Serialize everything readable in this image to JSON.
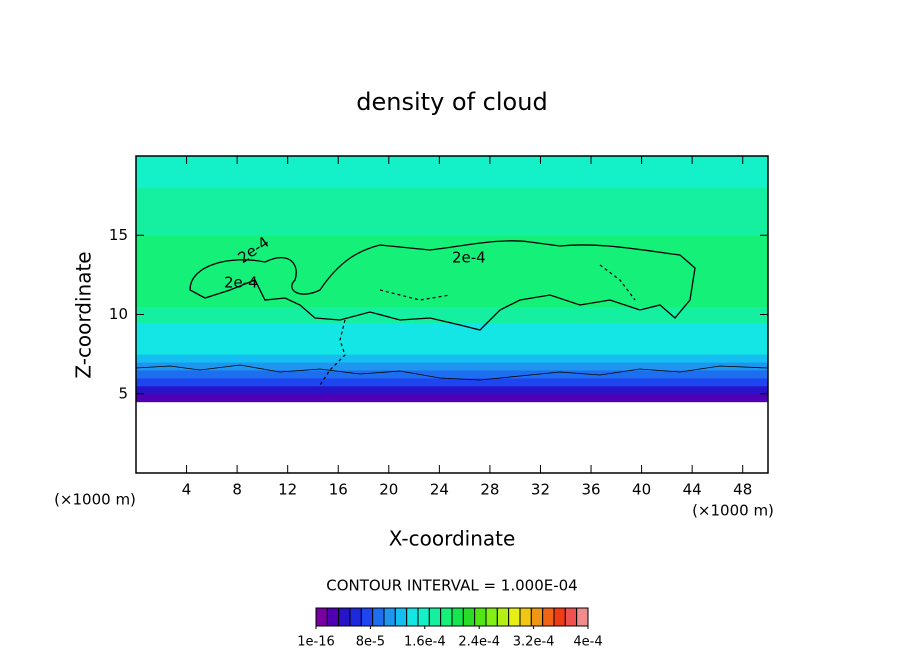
{
  "chart_data": {
    "type": "contour",
    "title": "density of cloud",
    "x_label": "X-coordinate",
    "y_label": "Z-coordinate",
    "x_unit": "(×1000 m)",
    "x_unit_right": "(×1000 m)",
    "contour_interval": "CONTOUR INTERVAL = 1.000E-04",
    "contour_labels": [
      "2e-4",
      "2e-4",
      "2e-4"
    ],
    "xlim": [
      0,
      50
    ],
    "xticks": [
      4,
      8,
      12,
      16,
      20,
      24,
      28,
      32,
      36,
      40,
      44,
      48
    ],
    "ylim": [
      0,
      20
    ],
    "yticks": [
      5,
      10,
      15
    ],
    "field": {
      "z_edges": [
        4.5,
        5,
        5.5,
        6,
        6.5,
        7,
        7.5,
        8.5,
        9.5,
        10.5,
        11.5,
        13,
        14,
        15,
        16,
        17,
        18,
        20
      ],
      "values": [
        2e-05,
        4e-05,
        7e-05,
        9e-05,
        0.00011,
        0.00012,
        0.000135,
        0.00015,
        0.00017,
        0.00019,
        0.0002,
        0.00019,
        0.000185,
        0.000175,
        0.000172,
        0.00017,
        0.00016
      ]
    },
    "clim": [
      1e-16,
      0.0004
    ],
    "colors": [
      "#7800a0",
      "#5000b4",
      "#2814c8",
      "#1e28dc",
      "#1e46f0",
      "#1e6ef0",
      "#1e96f0",
      "#14bef0",
      "#14e6e6",
      "#14f0c8",
      "#14f0a0",
      "#14f078",
      "#14e650",
      "#28dc28",
      "#50e614",
      "#82f014",
      "#b4f014",
      "#e6f014",
      "#f0c814",
      "#f09614",
      "#f06414",
      "#f03c14",
      "#f05050",
      "#f08c8c"
    ],
    "cticks": [
      1e-16,
      {
        "value": 8e-05,
        "label": "8e-5"
      },
      {
        "value": 0.00016,
        "label": "1.6e-4"
      },
      {
        "value": 0.00024,
        "label": "2.4e-4"
      },
      {
        "value": 0.00032,
        "label": "3.2e-4"
      },
      {
        "value": 0.0004,
        "label": "4e-4"
      }
    ]
  }
}
